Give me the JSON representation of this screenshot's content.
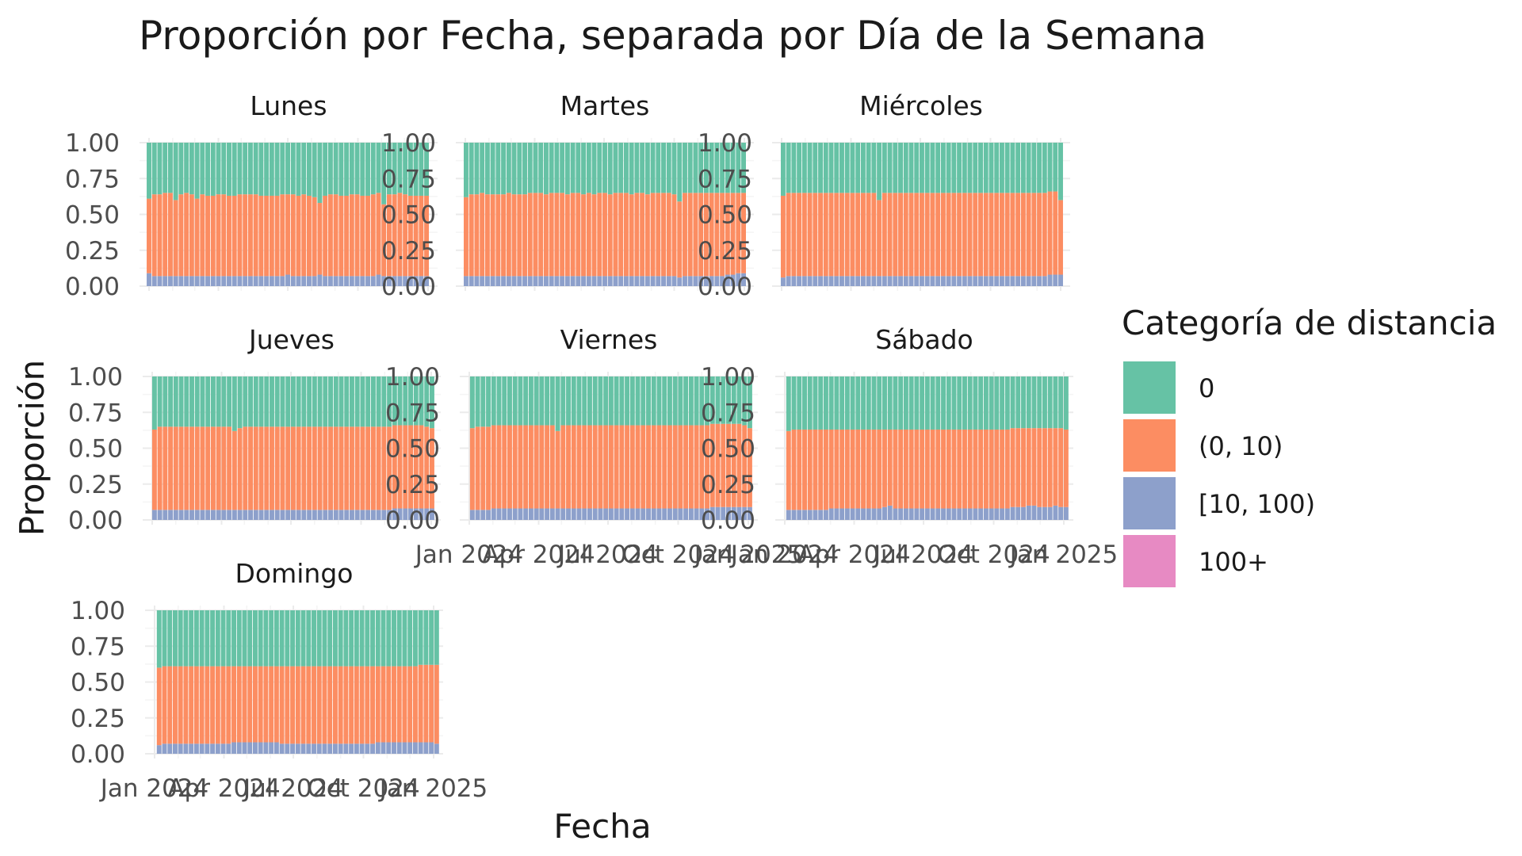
{
  "chart_data": {
    "type": "bar",
    "stacked": "fill",
    "title": "Proporción por Fecha, separada por Día de la Semana",
    "xlabel": "Fecha",
    "ylabel": "Proporción",
    "ylim": [
      0,
      1
    ],
    "y_ticks": [
      "0.00",
      "0.25",
      "0.50",
      "0.75",
      "1.00"
    ],
    "x_ticks": [
      "Jan 2024",
      "Apr 2024",
      "Jul 2024",
      "Oct 2024",
      "Jan 2025"
    ],
    "x_range": [
      "2024-01-01",
      "2025-01-01"
    ],
    "grid": true,
    "legend": {
      "title": "Categoría de distancia",
      "position": "right",
      "entries": [
        {
          "label": "0",
          "color": "#66c2a5"
        },
        {
          "label": "(0, 10)",
          "color": "#fc8d62"
        },
        {
          "label": "[10, 100)",
          "color": "#8da0cb"
        },
        {
          "label": "100+",
          "color": "#e78ac3"
        }
      ]
    },
    "series_order": [
      "100+",
      "[10, 100)",
      "(0, 10)",
      "0"
    ],
    "facets": [
      {
        "name": "Lunes",
        "first_date": "2024-01-01",
        "share_10_100": [
          0.09,
          0.07,
          0.07,
          0.07,
          0.07,
          0.07,
          0.07,
          0.07,
          0.07,
          0.07,
          0.07,
          0.07,
          0.07,
          0.07,
          0.07,
          0.07,
          0.07,
          0.07,
          0.07,
          0.07,
          0.07,
          0.07,
          0.07,
          0.07,
          0.07,
          0.07,
          0.08,
          0.07,
          0.07,
          0.07,
          0.07,
          0.07,
          0.08,
          0.07,
          0.07,
          0.07,
          0.07,
          0.07,
          0.07,
          0.07,
          0.07,
          0.07,
          0.07,
          0.08,
          0.07,
          0.07,
          0.07,
          0.07,
          0.07,
          0.07,
          0.07,
          0.07,
          0.07
        ],
        "share_0_10": [
          0.52,
          0.57,
          0.57,
          0.58,
          0.58,
          0.53,
          0.57,
          0.58,
          0.57,
          0.54,
          0.57,
          0.56,
          0.56,
          0.57,
          0.57,
          0.56,
          0.56,
          0.57,
          0.57,
          0.57,
          0.57,
          0.56,
          0.56,
          0.56,
          0.56,
          0.57,
          0.56,
          0.57,
          0.56,
          0.57,
          0.56,
          0.55,
          0.5,
          0.56,
          0.57,
          0.57,
          0.56,
          0.56,
          0.57,
          0.57,
          0.56,
          0.56,
          0.57,
          0.57,
          0.5,
          0.57,
          0.57,
          0.58,
          0.57,
          0.56,
          0.56,
          0.56,
          0.56
        ]
      },
      {
        "name": "Martes",
        "first_date": "2024-01-02",
        "share_10_100": [
          0.07,
          0.07,
          0.07,
          0.07,
          0.07,
          0.07,
          0.07,
          0.07,
          0.07,
          0.07,
          0.07,
          0.07,
          0.07,
          0.07,
          0.07,
          0.07,
          0.07,
          0.07,
          0.07,
          0.07,
          0.07,
          0.07,
          0.07,
          0.07,
          0.07,
          0.07,
          0.07,
          0.07,
          0.07,
          0.07,
          0.07,
          0.07,
          0.07,
          0.07,
          0.07,
          0.07,
          0.07,
          0.07,
          0.07,
          0.07,
          0.06,
          0.07,
          0.07,
          0.07,
          0.07,
          0.07,
          0.07,
          0.07,
          0.07,
          0.08,
          0.08,
          0.09,
          0.09
        ],
        "share_0_10": [
          0.55,
          0.57,
          0.57,
          0.58,
          0.57,
          0.57,
          0.57,
          0.57,
          0.58,
          0.57,
          0.57,
          0.57,
          0.58,
          0.58,
          0.58,
          0.57,
          0.58,
          0.58,
          0.58,
          0.57,
          0.58,
          0.58,
          0.57,
          0.58,
          0.57,
          0.58,
          0.58,
          0.57,
          0.58,
          0.58,
          0.58,
          0.57,
          0.58,
          0.58,
          0.57,
          0.58,
          0.58,
          0.58,
          0.58,
          0.57,
          0.53,
          0.58,
          0.58,
          0.58,
          0.58,
          0.58,
          0.58,
          0.58,
          0.58,
          0.57,
          0.57,
          0.56,
          0.56
        ]
      },
      {
        "name": "Miércoles",
        "first_date": "2024-01-03",
        "share_10_100": [
          0.06,
          0.07,
          0.07,
          0.07,
          0.07,
          0.07,
          0.07,
          0.07,
          0.07,
          0.07,
          0.07,
          0.07,
          0.07,
          0.07,
          0.07,
          0.07,
          0.07,
          0.07,
          0.07,
          0.07,
          0.07,
          0.07,
          0.07,
          0.07,
          0.07,
          0.07,
          0.07,
          0.07,
          0.07,
          0.07,
          0.07,
          0.07,
          0.07,
          0.07,
          0.07,
          0.07,
          0.07,
          0.07,
          0.07,
          0.07,
          0.07,
          0.07,
          0.07,
          0.07,
          0.07,
          0.07,
          0.07,
          0.07,
          0.07,
          0.07,
          0.08,
          0.08,
          0.08
        ],
        "share_0_10": [
          0.57,
          0.58,
          0.58,
          0.58,
          0.58,
          0.58,
          0.58,
          0.58,
          0.58,
          0.58,
          0.58,
          0.58,
          0.58,
          0.58,
          0.58,
          0.58,
          0.58,
          0.58,
          0.53,
          0.58,
          0.58,
          0.58,
          0.58,
          0.58,
          0.58,
          0.58,
          0.58,
          0.58,
          0.58,
          0.58,
          0.58,
          0.58,
          0.58,
          0.58,
          0.58,
          0.58,
          0.58,
          0.58,
          0.58,
          0.58,
          0.58,
          0.58,
          0.58,
          0.58,
          0.58,
          0.58,
          0.58,
          0.58,
          0.58,
          0.58,
          0.58,
          0.58,
          0.52
        ]
      },
      {
        "name": "Jueves",
        "first_date": "2024-01-04",
        "share_10_100": [
          0.07,
          0.07,
          0.07,
          0.07,
          0.07,
          0.07,
          0.07,
          0.07,
          0.07,
          0.07,
          0.07,
          0.07,
          0.07,
          0.07,
          0.07,
          0.07,
          0.07,
          0.07,
          0.07,
          0.07,
          0.07,
          0.07,
          0.07,
          0.07,
          0.07,
          0.07,
          0.07,
          0.07,
          0.07,
          0.07,
          0.07,
          0.07,
          0.07,
          0.07,
          0.07,
          0.07,
          0.07,
          0.07,
          0.07,
          0.07,
          0.07,
          0.07,
          0.07,
          0.07,
          0.07,
          0.08,
          0.08,
          0.08,
          0.08,
          0.08,
          0.08,
          0.08,
          0.08
        ],
        "share_0_10": [
          0.56,
          0.58,
          0.58,
          0.58,
          0.58,
          0.58,
          0.58,
          0.58,
          0.58,
          0.58,
          0.58,
          0.58,
          0.58,
          0.58,
          0.58,
          0.55,
          0.57,
          0.58,
          0.58,
          0.58,
          0.58,
          0.58,
          0.58,
          0.58,
          0.58,
          0.58,
          0.58,
          0.58,
          0.58,
          0.58,
          0.58,
          0.58,
          0.58,
          0.58,
          0.58,
          0.58,
          0.58,
          0.58,
          0.58,
          0.58,
          0.58,
          0.58,
          0.58,
          0.58,
          0.58,
          0.58,
          0.58,
          0.58,
          0.58,
          0.58,
          0.58,
          0.57,
          0.56
        ]
      },
      {
        "name": "Viernes",
        "first_date": "2024-01-05",
        "share_10_100": [
          0.07,
          0.07,
          0.07,
          0.07,
          0.08,
          0.08,
          0.08,
          0.08,
          0.08,
          0.08,
          0.08,
          0.08,
          0.08,
          0.08,
          0.08,
          0.08,
          0.08,
          0.08,
          0.08,
          0.08,
          0.08,
          0.08,
          0.08,
          0.08,
          0.08,
          0.08,
          0.08,
          0.08,
          0.08,
          0.08,
          0.08,
          0.08,
          0.08,
          0.08,
          0.08,
          0.08,
          0.08,
          0.08,
          0.08,
          0.08,
          0.08,
          0.08,
          0.08,
          0.08,
          0.08,
          0.09,
          0.09,
          0.09,
          0.09,
          0.09,
          0.09,
          0.09,
          0.09
        ],
        "share_0_10": [
          0.57,
          0.58,
          0.58,
          0.58,
          0.58,
          0.58,
          0.58,
          0.58,
          0.58,
          0.58,
          0.58,
          0.58,
          0.58,
          0.58,
          0.58,
          0.58,
          0.54,
          0.58,
          0.58,
          0.58,
          0.58,
          0.58,
          0.58,
          0.58,
          0.58,
          0.58,
          0.58,
          0.58,
          0.58,
          0.58,
          0.58,
          0.58,
          0.58,
          0.58,
          0.58,
          0.58,
          0.58,
          0.58,
          0.58,
          0.58,
          0.58,
          0.58,
          0.58,
          0.58,
          0.58,
          0.58,
          0.58,
          0.58,
          0.58,
          0.58,
          0.58,
          0.57,
          0.55
        ]
      },
      {
        "name": "Sábado",
        "first_date": "2024-01-06",
        "share_10_100": [
          0.07,
          0.07,
          0.07,
          0.07,
          0.07,
          0.07,
          0.07,
          0.07,
          0.08,
          0.08,
          0.08,
          0.08,
          0.08,
          0.08,
          0.08,
          0.08,
          0.08,
          0.08,
          0.09,
          0.1,
          0.08,
          0.08,
          0.08,
          0.08,
          0.08,
          0.08,
          0.08,
          0.08,
          0.08,
          0.08,
          0.08,
          0.08,
          0.08,
          0.08,
          0.08,
          0.08,
          0.08,
          0.08,
          0.08,
          0.08,
          0.08,
          0.08,
          0.09,
          0.09,
          0.09,
          0.1,
          0.1,
          0.09,
          0.09,
          0.09,
          0.1,
          0.09,
          0.09
        ],
        "share_0_10": [
          0.55,
          0.56,
          0.56,
          0.56,
          0.56,
          0.56,
          0.56,
          0.56,
          0.55,
          0.55,
          0.55,
          0.55,
          0.55,
          0.55,
          0.55,
          0.55,
          0.55,
          0.55,
          0.54,
          0.53,
          0.55,
          0.55,
          0.55,
          0.55,
          0.55,
          0.55,
          0.55,
          0.55,
          0.55,
          0.55,
          0.55,
          0.55,
          0.55,
          0.55,
          0.55,
          0.55,
          0.55,
          0.55,
          0.55,
          0.55,
          0.55,
          0.55,
          0.55,
          0.55,
          0.55,
          0.54,
          0.54,
          0.55,
          0.55,
          0.55,
          0.54,
          0.55,
          0.54
        ]
      },
      {
        "name": "Domingo",
        "first_date": "2024-01-07",
        "share_10_100": [
          0.06,
          0.07,
          0.07,
          0.07,
          0.07,
          0.07,
          0.07,
          0.07,
          0.07,
          0.07,
          0.07,
          0.07,
          0.07,
          0.07,
          0.08,
          0.08,
          0.08,
          0.08,
          0.08,
          0.08,
          0.08,
          0.08,
          0.08,
          0.07,
          0.07,
          0.07,
          0.07,
          0.07,
          0.07,
          0.07,
          0.07,
          0.07,
          0.07,
          0.07,
          0.07,
          0.07,
          0.07,
          0.07,
          0.07,
          0.07,
          0.07,
          0.08,
          0.08,
          0.08,
          0.08,
          0.08,
          0.08,
          0.08,
          0.08,
          0.08,
          0.08,
          0.08,
          0.07
        ],
        "share_0_10": [
          0.54,
          0.54,
          0.54,
          0.54,
          0.54,
          0.54,
          0.54,
          0.54,
          0.54,
          0.54,
          0.54,
          0.54,
          0.54,
          0.54,
          0.53,
          0.53,
          0.53,
          0.53,
          0.53,
          0.53,
          0.53,
          0.53,
          0.53,
          0.54,
          0.54,
          0.54,
          0.54,
          0.54,
          0.54,
          0.54,
          0.54,
          0.54,
          0.54,
          0.54,
          0.54,
          0.54,
          0.54,
          0.54,
          0.54,
          0.54,
          0.54,
          0.53,
          0.53,
          0.53,
          0.53,
          0.53,
          0.53,
          0.53,
          0.53,
          0.54,
          0.54,
          0.54,
          0.55
        ]
      }
    ]
  }
}
